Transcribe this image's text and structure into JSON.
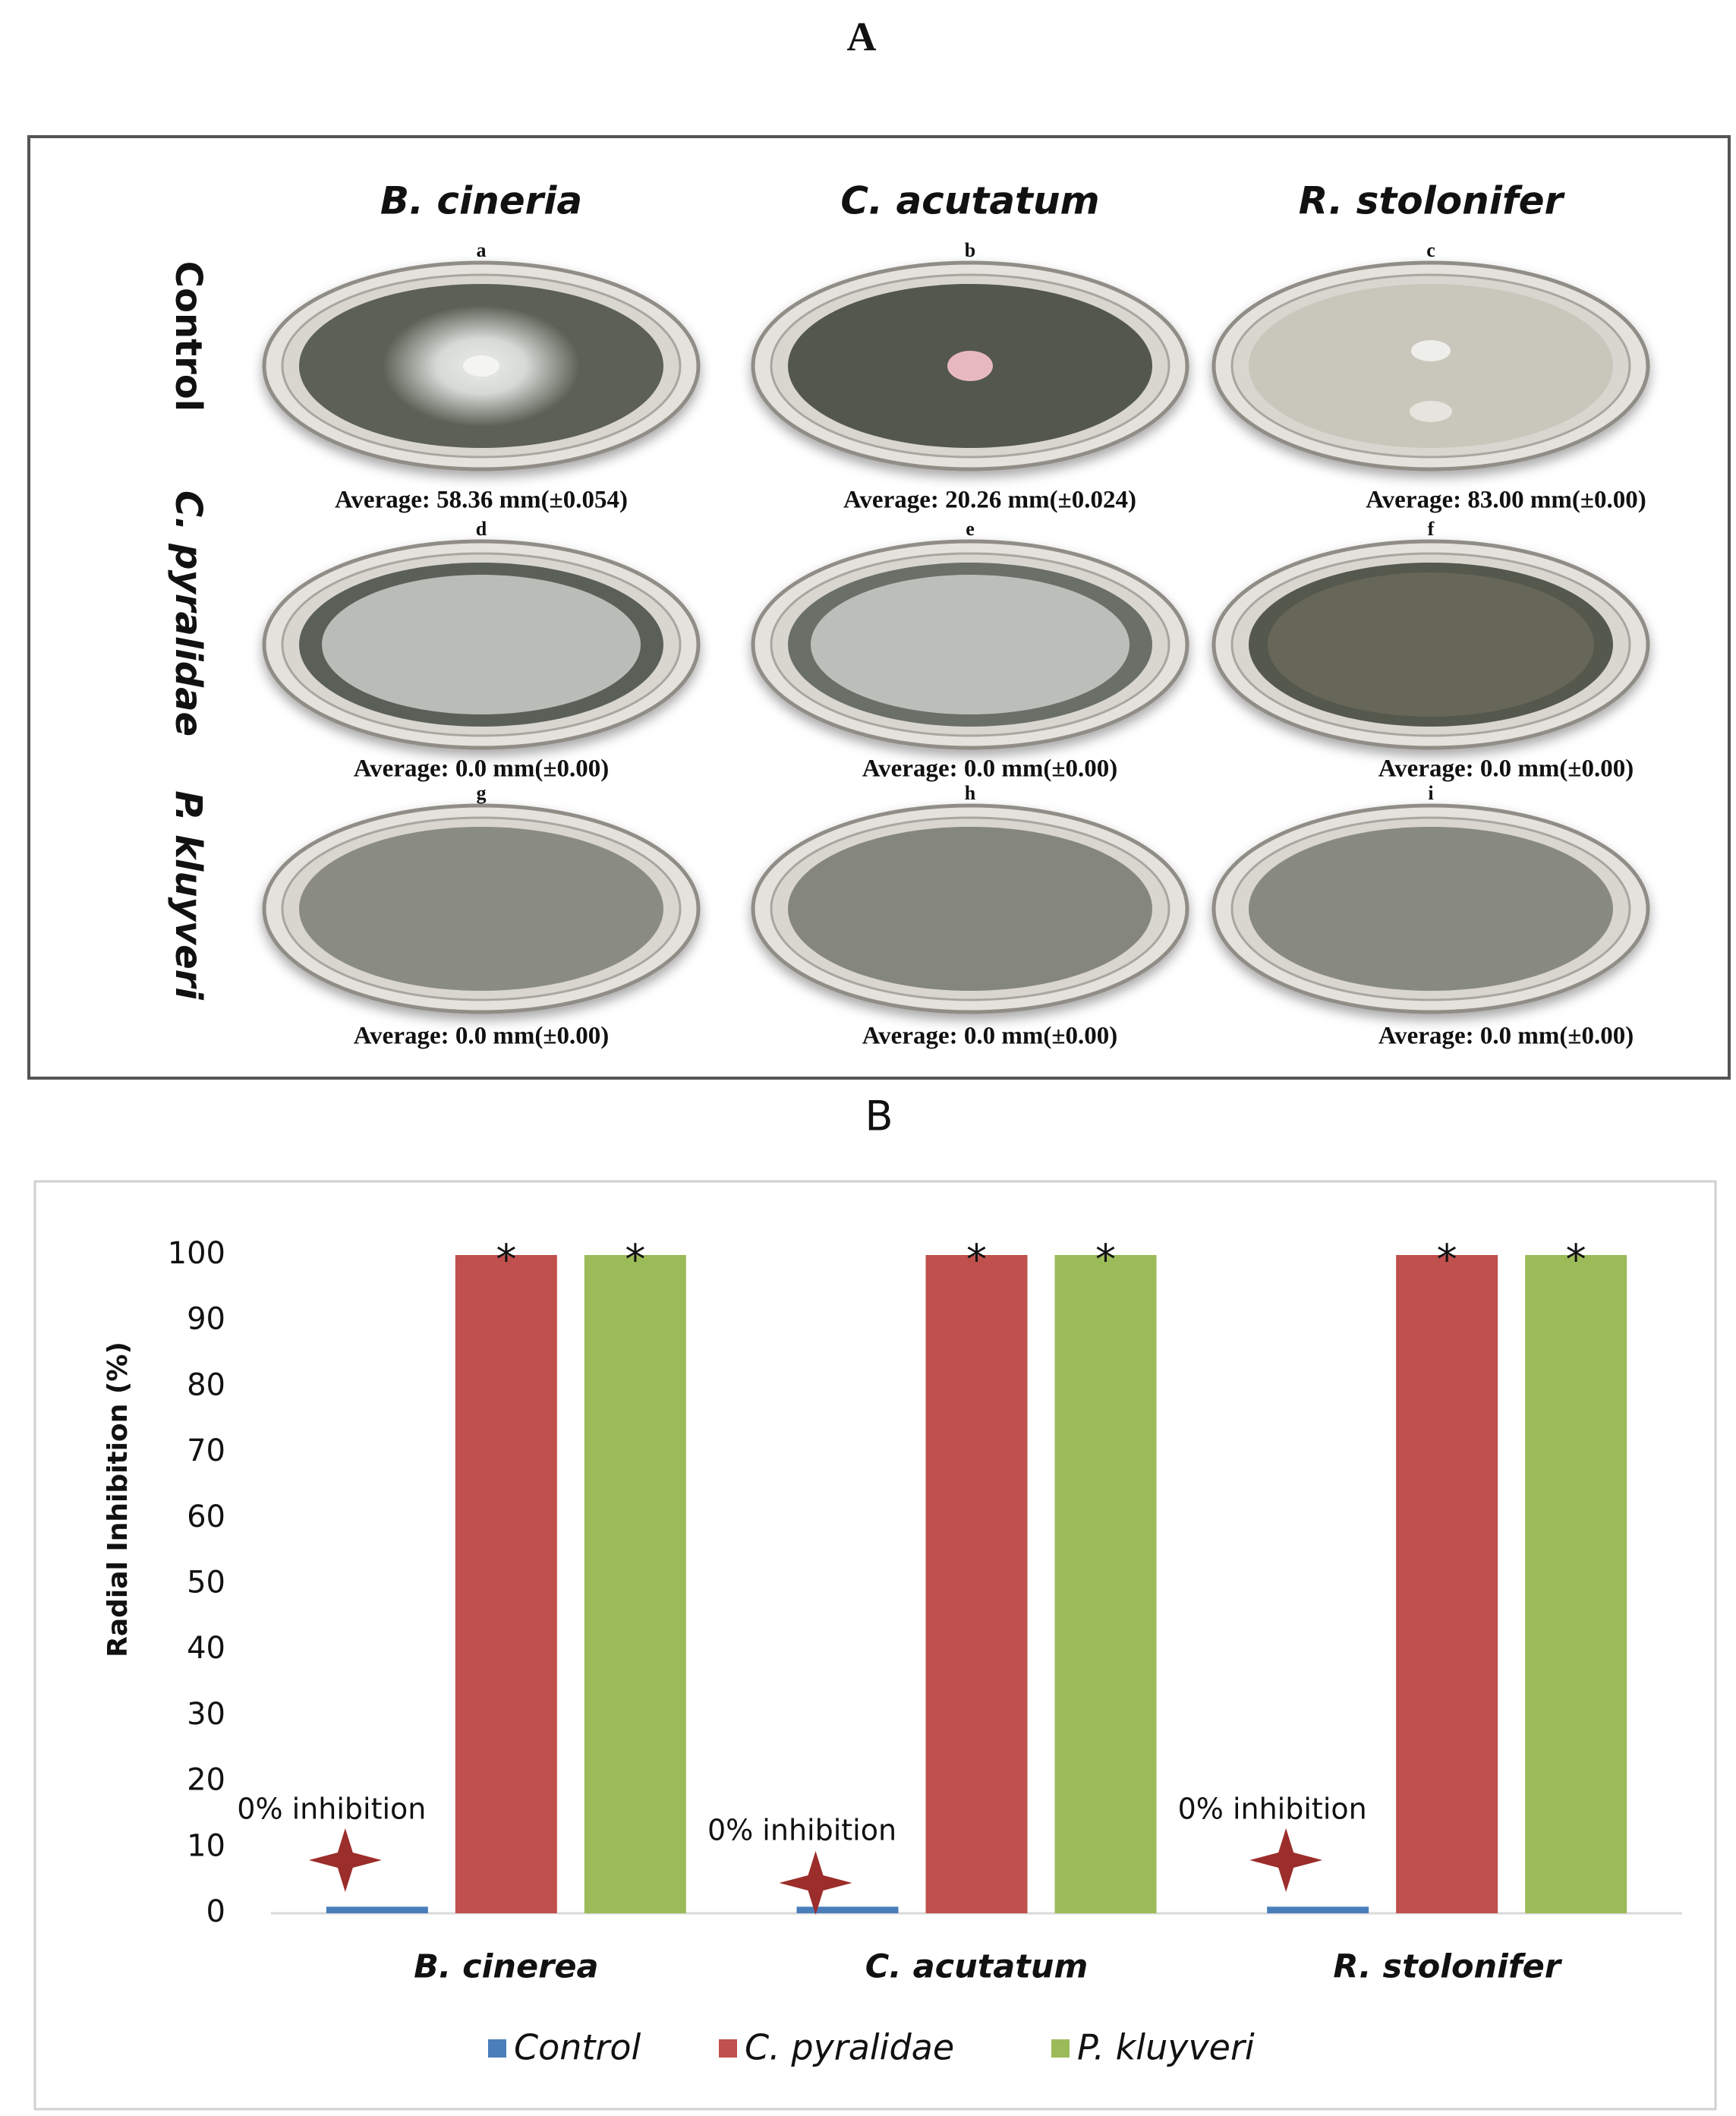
{
  "panel_a": {
    "title": "A",
    "columns": [
      "B. cineria",
      "C. acutatum",
      "R. stolonifer"
    ],
    "rows": [
      "Control",
      "C. pyralidae",
      "P. kluyveri"
    ],
    "plates": [
      {
        "label": "a",
        "average": "Average: 58.36 mm(±0.054)"
      },
      {
        "label": "b",
        "average": "Average: 20.26 mm(±0.024)"
      },
      {
        "label": "c",
        "average": "Average: 83.00 mm(±0.00)"
      },
      {
        "label": "d",
        "average": "Average: 0.0 mm(±0.00)"
      },
      {
        "label": "e",
        "average": "Average: 0.0 mm(±0.00)"
      },
      {
        "label": "f",
        "average": "Average: 0.0 mm(±0.00)"
      },
      {
        "label": "g",
        "average": "Average: 0.0 mm(±0.00)"
      },
      {
        "label": "h",
        "average": "Average: 0.0 mm(±0.00)"
      },
      {
        "label": "i",
        "average": "Average: 0.0 mm(±0.00)"
      }
    ]
  },
  "chart_data": {
    "type": "bar",
    "title": "B",
    "y_label": "Radial Inhibition (%)",
    "categories": [
      "B. cinerea",
      "C. acutatum",
      "R. stolonifer"
    ],
    "series": [
      {
        "name": "Control",
        "color": "#4a7ebb",
        "values": [
          1,
          1,
          1
        ],
        "annotation": "0% inhibition"
      },
      {
        "name": "C. pyralidae",
        "color": "#c0504d",
        "values": [
          100,
          100,
          100
        ],
        "marker_label": "*"
      },
      {
        "name": "P. kluyveri",
        "color": "#9bbb59",
        "values": [
          100,
          100,
          100
        ],
        "marker_label": "*"
      }
    ],
    "ylim": [
      0,
      100
    ],
    "yticks": [
      0,
      10,
      20,
      30,
      40,
      50,
      60,
      70,
      80,
      90,
      100
    ],
    "grid": false
  }
}
